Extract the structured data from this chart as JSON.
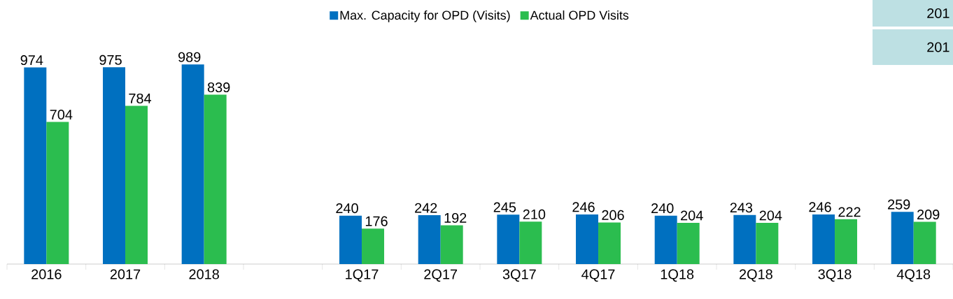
{
  "chart_data": {
    "type": "bar",
    "categories": [
      "2016",
      "2017",
      "2018",
      null,
      "1Q17",
      "2Q17",
      "3Q17",
      "4Q17",
      "1Q18",
      "2Q18",
      "3Q18",
      "4Q18"
    ],
    "series": [
      {
        "name": "Max. Capacity for OPD (Visits)",
        "color": "#0070c0",
        "values": [
          974,
          975,
          989,
          null,
          240,
          242,
          245,
          246,
          240,
          243,
          246,
          259
        ]
      },
      {
        "name": "Actual OPD Visits",
        "color": "#2bbd4f",
        "values": [
          704,
          784,
          839,
          null,
          176,
          192,
          210,
          206,
          204,
          204,
          222,
          209
        ]
      }
    ],
    "data_labels": true,
    "legend": "top",
    "tick_labels": "x",
    "annotations": [
      "201",
      "201"
    ]
  }
}
